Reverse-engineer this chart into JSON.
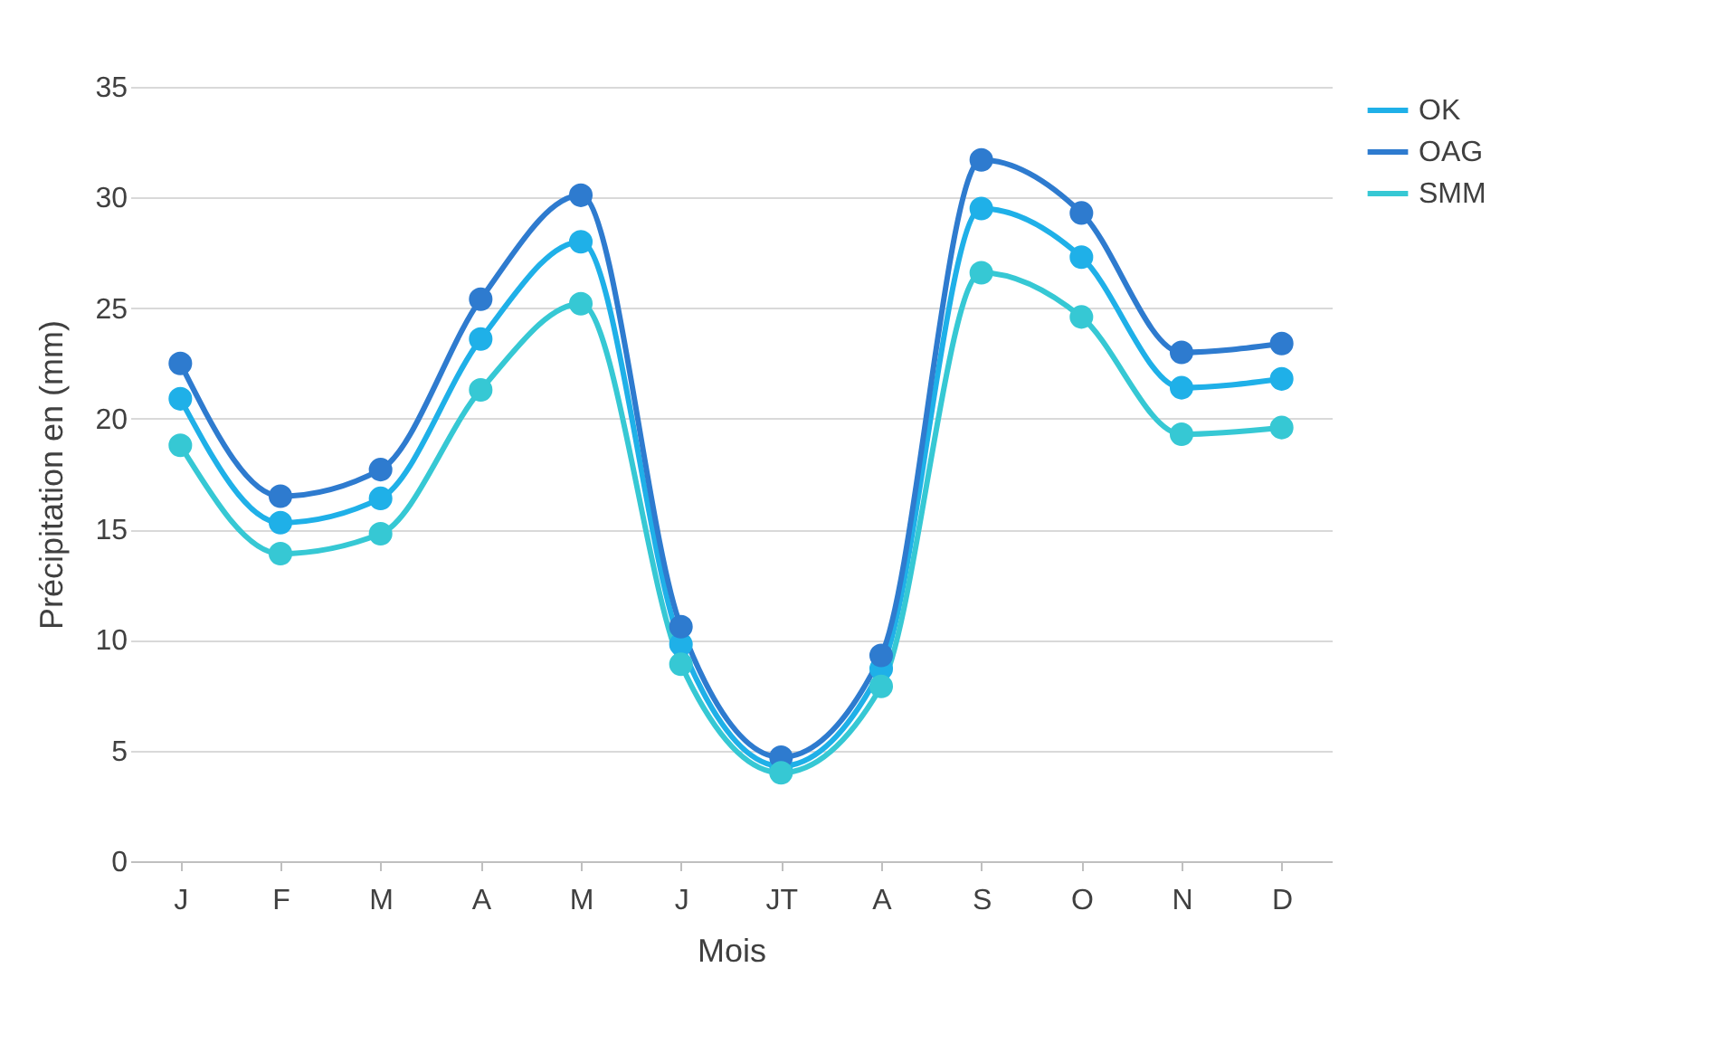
{
  "chart_data": {
    "type": "line",
    "xlabel": "Mois",
    "ylabel": "Précipitation en (mm)",
    "categories": [
      "J",
      "F",
      "M",
      "A",
      "M",
      "J",
      "JT",
      "A",
      "S",
      "O",
      "N",
      "D"
    ],
    "series": [
      {
        "name": "OK",
        "color": "#1fb0e8",
        "values": [
          20.9,
          15.3,
          16.4,
          23.6,
          28.0,
          9.8,
          4.3,
          8.7,
          29.5,
          27.3,
          21.4,
          21.8
        ]
      },
      {
        "name": "OAG",
        "color": "#2e7bcf",
        "values": [
          22.5,
          16.5,
          17.7,
          25.4,
          30.1,
          10.6,
          4.7,
          9.3,
          31.7,
          29.3,
          23.0,
          23.4
        ]
      },
      {
        "name": "SMM",
        "color": "#36c8d4",
        "values": [
          18.8,
          13.9,
          14.8,
          21.3,
          25.2,
          8.9,
          4.0,
          7.9,
          26.6,
          24.6,
          19.3,
          19.6
        ]
      }
    ],
    "ylim": [
      0,
      35
    ],
    "yticks": [
      0,
      5,
      10,
      15,
      20,
      25,
      30,
      35
    ],
    "grid": "y",
    "legend": "right",
    "marker": "circle",
    "line_style": "solid"
  }
}
